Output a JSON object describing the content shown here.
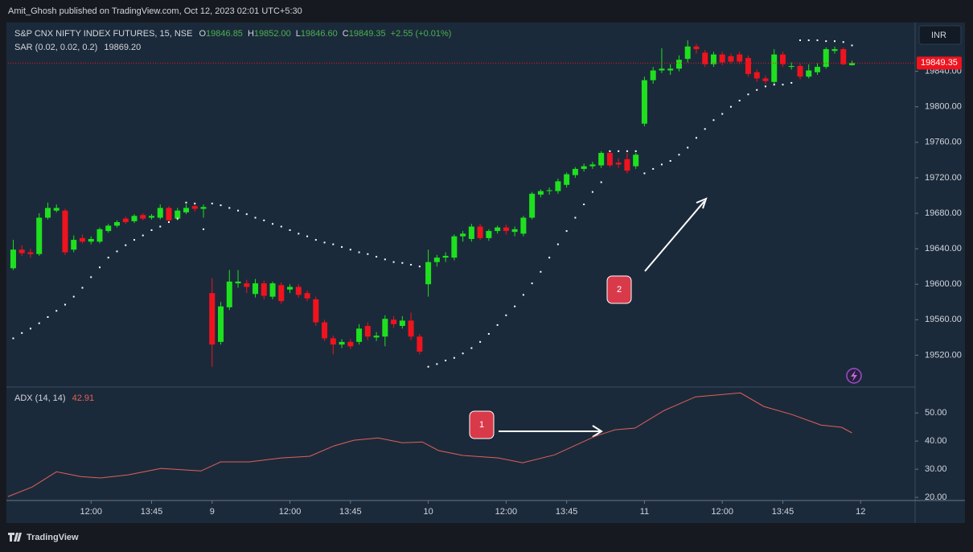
{
  "header": {
    "credit": "Amit_Ghosh published on TradingView.com, Oct 12, 2023 02:01 UTC+5:30",
    "footer": "TradingView"
  },
  "chart_data": [
    {
      "type": "candlestick",
      "title": "S&P CNX NIFTY INDEX FUTURES, 15, NSE",
      "legend": [
        {
          "key": "O",
          "text": "19846.85"
        },
        {
          "key": "H",
          "text": "19852.00"
        },
        {
          "key": "L",
          "text": "19846.60"
        },
        {
          "key": "C",
          "text": "19849.35"
        }
      ],
      "change": "+2.55 (+0.01%)",
      "currency": "INR",
      "annotation": "2",
      "up_color": "#1fe01f",
      "down_color": "#f0131e",
      "legend_color": "#4caf50",
      "xlim": [
        -0.6,
        104.3
      ],
      "open": [
        19618,
        19639,
        19636,
        19634,
        19675,
        19683,
        19683,
        19639,
        19652,
        19648,
        19648,
        19660,
        19666,
        19674,
        19671,
        19678,
        19675,
        19675,
        19686,
        19674,
        19681,
        19688,
        19685,
        19590,
        19535,
        19574,
        19601,
        19601,
        19589,
        19601,
        19586,
        19599,
        19594,
        19597,
        19590,
        19583,
        19557,
        19539,
        19532,
        19535,
        19535,
        19553,
        19540,
        19541,
        19560,
        19553,
        19559,
        19541,
        19600,
        19625,
        19630,
        19630,
        19654,
        19651,
        19665,
        19652,
        19660,
        19664,
        19659,
        19657,
        19675,
        19701,
        19705,
        19705,
        19712,
        19723,
        19730,
        19733,
        19734,
        19748,
        19737,
        19741,
        19733,
        19781,
        19830,
        19841,
        19841,
        19843,
        19854,
        19868,
        19861,
        19848,
        19859,
        19857,
        19859,
        19855,
        19839,
        19832,
        19828,
        19859,
        19845,
        19846,
        19834,
        19839,
        19845,
        19863,
        19865,
        19846.85
      ],
      "high": [
        19650,
        19644,
        19640,
        19680,
        19692,
        19690,
        19685,
        19655,
        19656,
        19654,
        19664,
        19668,
        19672,
        19676,
        19679,
        19680,
        19679,
        19690,
        19688,
        19686,
        19690,
        19690,
        19690,
        19607,
        19580,
        19616,
        19616,
        19605,
        19606,
        19604,
        19603,
        19602,
        19600,
        19600,
        19593,
        19586,
        19560,
        19542,
        19538,
        19538,
        19555,
        19557,
        19546,
        19565,
        19564,
        19564,
        19568,
        19544,
        19639,
        19633,
        19636,
        19656,
        19660,
        19668,
        19668,
        19662,
        19666,
        19667,
        19665,
        19677,
        19704,
        19707,
        19709,
        19719,
        19726,
        19732,
        19736,
        19738,
        19750,
        19750,
        19742,
        19748,
        19748,
        19834,
        19845,
        19866,
        19848,
        19858,
        19875,
        19871,
        19864,
        19862,
        19862,
        19860,
        19862,
        19858,
        19842,
        19835,
        19865,
        19862,
        19850,
        19849,
        19848,
        19849,
        19867,
        19868,
        19867,
        19852
      ],
      "low": [
        19616,
        19632,
        19630,
        19632,
        19673,
        19681,
        19633,
        19636,
        19646,
        19645,
        19646,
        19658,
        19664,
        19668,
        19669,
        19672,
        19673,
        19673,
        19670,
        19672,
        19679,
        19682,
        19675,
        19507,
        19532,
        19571,
        19596,
        19590,
        19585,
        19583,
        19583,
        19578,
        19590,
        19585,
        19581,
        19553,
        19536,
        19521,
        19528,
        19527,
        19532,
        19537,
        19536,
        19530,
        19551,
        19550,
        19537,
        19521,
        19586,
        19620,
        19625,
        19627,
        19648,
        19648,
        19650,
        19649,
        19657,
        19656,
        19654,
        19654,
        19673,
        19698,
        19701,
        19702,
        19709,
        19720,
        19727,
        19730,
        19731,
        19732,
        19731,
        19725,
        19730,
        19778,
        19826,
        19838,
        19836,
        19840,
        19850,
        19860,
        19845,
        19845,
        19847,
        19849,
        19848,
        19834,
        19828,
        19826,
        19826,
        19845,
        19842,
        19831,
        19832,
        19836,
        19843,
        19860,
        19847,
        19846.6
      ],
      "close": [
        19639,
        19635,
        19634,
        19675,
        19686,
        19686,
        19636,
        19650,
        19648,
        19651,
        19662,
        19666,
        19670,
        19670,
        19677,
        19674,
        19677,
        19686,
        19672,
        19683,
        19686,
        19685,
        19687,
        19532,
        19575,
        19603,
        19603,
        19597,
        19601,
        19587,
        19601,
        19581,
        19597,
        19588,
        19584,
        19557,
        19539,
        19532,
        19535,
        19530,
        19550,
        19541,
        19542,
        19561,
        19555,
        19559,
        19541,
        19524,
        19625,
        19630,
        19632,
        19654,
        19657,
        19665,
        19652,
        19660,
        19664,
        19660,
        19662,
        19675,
        19702,
        19705,
        19706,
        19716,
        19724,
        19730,
        19733,
        19735,
        19748,
        19734,
        19735,
        19728,
        19746,
        19830,
        19841,
        19843,
        19843,
        19853,
        19868,
        19865,
        19848,
        19859,
        19850,
        19851,
        19851,
        19837,
        19832,
        19829,
        19859,
        19848,
        19846,
        19834,
        19841,
        19845,
        19865,
        19865,
        19848,
        19849.35
      ],
      "indicator": {
        "name": "SAR (0.02, 0.02, 0.2)",
        "value_label": "19869.20",
        "color": "#ffffff",
        "values": [
          19539,
          19545,
          19550,
          19556,
          19563,
          19570,
          19577,
          19586,
          19596,
          19608,
          19619,
          19630,
          19637,
          19644,
          19650,
          19655,
          19661,
          19665,
          19670,
          19674,
          19692,
          19691,
          19662,
          19691,
          19689,
          19686,
          19683,
          19679,
          19675,
          19672,
          19668,
          19665,
          19661,
          19657,
          19654,
          19650,
          19647,
          19645,
          19642,
          19639,
          19636,
          19634,
          19631,
          19628,
          19625,
          19624,
          19622,
          19620,
          19507,
          19510,
          19514,
          19517,
          19522,
          19528,
          19535,
          19544,
          19554,
          19565,
          19575,
          19588,
          19601,
          19614,
          19630,
          19645,
          19660,
          19675,
          19690,
          19704,
          19715,
          19750,
          19750,
          19750,
          19750,
          19725,
          19730,
          19735,
          19739,
          19746,
          19754,
          19765,
          19775,
          19785,
          19792,
          19800,
          19807,
          19814,
          19819,
          19823,
          19825,
          19825,
          19827,
          19875,
          19875,
          19875,
          19874,
          19874,
          19873,
          19869.2
        ]
      },
      "last_price": 19849.35,
      "last_price_color": "#f0131e",
      "ylim": [
        19485,
        19895
      ],
      "yticks": [
        {
          "value": 19520,
          "label": "19520.00"
        },
        {
          "value": 19560,
          "label": "19560.00"
        },
        {
          "value": 19600,
          "label": "19600.00"
        },
        {
          "value": 19640,
          "label": "19640.00"
        },
        {
          "value": 19680,
          "label": "19680.00"
        },
        {
          "value": 19720,
          "label": "19720.00"
        },
        {
          "value": 19760,
          "label": "19760.00"
        },
        {
          "value": 19800,
          "label": "19800.00"
        },
        {
          "value": 19840,
          "label": "19840.00"
        }
      ]
    },
    {
      "type": "line",
      "name": "ADX (14, 14)",
      "color": "#e0605a",
      "annotation": "1",
      "x": [
        -0.6,
        2.2,
        5,
        7.8,
        10.1,
        13.3,
        17.1,
        21.7,
        24,
        27.3,
        31,
        34.3,
        37.1,
        39.4,
        42.2,
        45,
        47.3,
        49.2,
        52,
        56.1,
        58.9,
        62.6,
        67.3,
        69.6,
        71.9,
        75.3,
        78.9,
        84.1,
        86.8,
        90.1,
        93.4,
        95.8,
        97
      ],
      "values": [
        20.3,
        23.7,
        29.1,
        27.4,
        26.9,
        28,
        30.3,
        29.4,
        32.6,
        32.6,
        34,
        34.6,
        38.3,
        40.3,
        41.1,
        39.4,
        39.7,
        36.6,
        34.9,
        34,
        32.3,
        35.1,
        41.7,
        44,
        44.6,
        50.9,
        55.7,
        57.1,
        52.3,
        49.4,
        45.7,
        44.9,
        42.91
      ],
      "xlim": [
        -0.6,
        104.3
      ],
      "xticks": [
        {
          "value": 9,
          "label": "12:00"
        },
        {
          "value": 16,
          "label": "13:45"
        },
        {
          "value": 23,
          "label": "9"
        },
        {
          "value": 32,
          "label": "12:00"
        },
        {
          "value": 39,
          "label": "13:45"
        },
        {
          "value": 48,
          "label": "10"
        },
        {
          "value": 57,
          "label": "12:00"
        },
        {
          "value": 64,
          "label": "13:45"
        },
        {
          "value": 73,
          "label": "11"
        },
        {
          "value": 82,
          "label": "12:00"
        },
        {
          "value": 89,
          "label": "13:45"
        },
        {
          "value": 98,
          "label": "12"
        }
      ],
      "ylim": [
        18.9,
        58.9
      ],
      "yticks": [
        {
          "value": 20,
          "label": "20.00"
        },
        {
          "value": 30,
          "label": "30.00"
        },
        {
          "value": 40,
          "label": "40.00"
        },
        {
          "value": 50,
          "label": "50.00"
        }
      ]
    }
  ]
}
